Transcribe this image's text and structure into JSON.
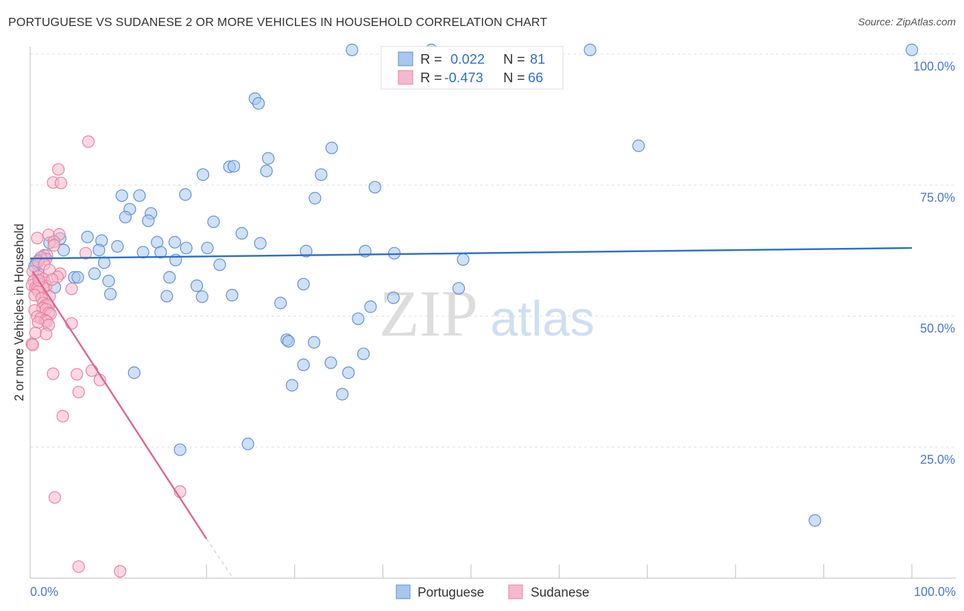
{
  "header": {
    "title": "PORTUGUESE VS SUDANESE 2 OR MORE VEHICLES IN HOUSEHOLD CORRELATION CHART",
    "source": "Source: ZipAtlas.com"
  },
  "watermark": {
    "zip": "ZIP",
    "atlas": "atlas"
  },
  "legend_box": {
    "rows": [
      {
        "r_label": "R =",
        "r_value": "0.022",
        "n_label": "N =",
        "n_value": "81"
      },
      {
        "r_label": "R =",
        "r_value": "-0.473",
        "n_label": "N =",
        "n_value": "66"
      }
    ]
  },
  "colors": {
    "portuguese_fill": "#a9c6ec",
    "portuguese_stroke": "#5a8fd6",
    "portuguese_line": "#2a6fc9",
    "sudanese_fill": "#f7b8cb",
    "sudanese_stroke": "#e77fa0",
    "sudanese_line": "#de6590",
    "value_text": "#2f6fd0",
    "grid": "#dddddd"
  },
  "chart_data": {
    "type": "scatter",
    "title": "PORTUGUESE VS SUDANESE 2 OR MORE VEHICLES IN HOUSEHOLD CORRELATION CHART",
    "xlabel": "",
    "ylabel": "2 or more Vehicles in Household",
    "xlim": [
      0,
      100
    ],
    "ylim": [
      0,
      100
    ],
    "x_tick_labels": [
      "0.0%",
      "100.0%"
    ],
    "y_tick_labels": [
      "100.0%",
      "75.0%",
      "50.0%",
      "25.0%"
    ],
    "y_ticks": [
      100,
      75,
      50,
      25
    ],
    "legend": [
      "Portuguese",
      "Sudanese"
    ],
    "series": [
      {
        "name": "Portuguese",
        "r": 0.022,
        "n": 81,
        "trend": {
          "x": [
            0,
            100
          ],
          "y": [
            61.0,
            63.0
          ]
        },
        "points": [
          [
            36.5,
            100.8
          ],
          [
            45.5,
            100.8
          ],
          [
            100,
            100.8
          ],
          [
            63.5,
            100.8
          ],
          [
            25.5,
            91.5
          ],
          [
            25.9,
            90.6
          ],
          [
            34.2,
            82.1
          ],
          [
            69.0,
            82.5
          ],
          [
            27.0,
            80.1
          ],
          [
            22.6,
            78.5
          ],
          [
            23.1,
            78.6
          ],
          [
            26.8,
            77.7
          ],
          [
            19.6,
            77.0
          ],
          [
            33.0,
            77.0
          ],
          [
            39.1,
            74.6
          ],
          [
            17.6,
            73.2
          ],
          [
            10.4,
            73.0
          ],
          [
            12.4,
            73.0
          ],
          [
            32.3,
            72.5
          ],
          [
            11.3,
            70.4
          ],
          [
            10.8,
            68.9
          ],
          [
            13.7,
            69.6
          ],
          [
            13.4,
            68.2
          ],
          [
            20.8,
            68.0
          ],
          [
            24.0,
            65.8
          ],
          [
            6.5,
            65.1
          ],
          [
            8.1,
            64.4
          ],
          [
            14.4,
            64.1
          ],
          [
            16.4,
            64.1
          ],
          [
            3.4,
            64.8
          ],
          [
            2.2,
            64.0
          ],
          [
            26.1,
            63.9
          ],
          [
            9.9,
            63.3
          ],
          [
            17.7,
            63.0
          ],
          [
            20.1,
            63.0
          ],
          [
            7.8,
            62.6
          ],
          [
            3.8,
            62.6
          ],
          [
            12.8,
            62.2
          ],
          [
            14.8,
            62.2
          ],
          [
            31.3,
            62.4
          ],
          [
            38.0,
            62.4
          ],
          [
            41.3,
            62.0
          ],
          [
            1.6,
            61.6
          ],
          [
            1.0,
            60.7
          ],
          [
            8.4,
            60.2
          ],
          [
            16.5,
            60.7
          ],
          [
            21.5,
            59.8
          ],
          [
            0.7,
            60.1
          ],
          [
            49.1,
            60.8
          ],
          [
            0.9,
            58.2
          ],
          [
            7.3,
            58.1
          ],
          [
            5.0,
            57.4
          ],
          [
            5.4,
            57.4
          ],
          [
            15.8,
            57.4
          ],
          [
            8.9,
            56.7
          ],
          [
            18.9,
            55.8
          ],
          [
            31.0,
            56.1
          ],
          [
            2.8,
            55.5
          ],
          [
            48.6,
            55.3
          ],
          [
            9.1,
            54.2
          ],
          [
            15.5,
            53.8
          ],
          [
            19.5,
            53.7
          ],
          [
            22.9,
            54.0
          ],
          [
            41.2,
            53.5
          ],
          [
            28.4,
            52.5
          ],
          [
            38.6,
            51.8
          ],
          [
            37.2,
            49.5
          ],
          [
            29.1,
            45.5
          ],
          [
            29.3,
            45.2
          ],
          [
            32.2,
            45.0
          ],
          [
            37.8,
            42.8
          ],
          [
            31.0,
            40.7
          ],
          [
            34.1,
            41.1
          ],
          [
            36.1,
            39.2
          ],
          [
            11.8,
            39.2
          ],
          [
            29.7,
            36.8
          ],
          [
            35.4,
            35.1
          ],
          [
            17.0,
            24.5
          ],
          [
            24.7,
            25.6
          ],
          [
            89.0,
            11.0
          ],
          [
            0.5,
            59.5
          ]
        ]
      },
      {
        "name": "Sudanese",
        "r": -0.473,
        "n": 66,
        "trend": {
          "x": [
            0.3,
            20.0
          ],
          "y": [
            58.5,
            7.5
          ]
        },
        "trend_dashed": {
          "x": [
            20.0,
            23.0
          ],
          "y": [
            7.5,
            0
          ]
        },
        "points": [
          [
            6.6,
            83.3
          ],
          [
            3.2,
            78.0
          ],
          [
            2.6,
            75.5
          ],
          [
            3.5,
            75.4
          ],
          [
            2.1,
            65.5
          ],
          [
            3.3,
            65.6
          ],
          [
            0.8,
            64.9
          ],
          [
            2.7,
            64.2
          ],
          [
            2.7,
            63.5
          ],
          [
            6.3,
            62.0
          ],
          [
            1.9,
            61.6
          ],
          [
            1.8,
            60.9
          ],
          [
            1.2,
            61.2
          ],
          [
            0.9,
            60.4
          ],
          [
            1.6,
            59.9
          ],
          [
            0.3,
            58.5
          ],
          [
            2.2,
            58.8
          ],
          [
            3.4,
            58.1
          ],
          [
            3.1,
            57.5
          ],
          [
            0.9,
            57.6
          ],
          [
            1.5,
            57.1
          ],
          [
            0.4,
            56.7
          ],
          [
            1.7,
            56.4
          ],
          [
            1.0,
            56.2
          ],
          [
            0.2,
            55.9
          ],
          [
            1.8,
            55.7
          ],
          [
            0.6,
            55.4
          ],
          [
            1.5,
            55.4
          ],
          [
            0.8,
            55.2
          ],
          [
            4.7,
            55.2
          ],
          [
            0.9,
            54.7
          ],
          [
            0.5,
            54.0
          ],
          [
            2.2,
            53.8
          ],
          [
            1.3,
            53.4
          ],
          [
            1.5,
            52.5
          ],
          [
            1.7,
            52.0
          ],
          [
            2.1,
            51.9
          ],
          [
            2.0,
            52.2
          ],
          [
            1.4,
            51.5
          ],
          [
            1.8,
            51.3
          ],
          [
            0.5,
            51.1
          ],
          [
            2.1,
            50.6
          ],
          [
            2.3,
            50.4
          ],
          [
            0.8,
            49.9
          ],
          [
            1.2,
            49.6
          ],
          [
            1.7,
            49.2
          ],
          [
            1.9,
            49.0
          ],
          [
            0.9,
            48.8
          ],
          [
            2.1,
            48.3
          ],
          [
            4.7,
            48.6
          ],
          [
            0.6,
            46.8
          ],
          [
            1.8,
            46.6
          ],
          [
            0.2,
            44.7
          ],
          [
            0.3,
            44.5
          ],
          [
            2.6,
            39.0
          ],
          [
            5.3,
            38.9
          ],
          [
            7.0,
            39.6
          ],
          [
            7.9,
            37.8
          ],
          [
            5.5,
            35.5
          ],
          [
            3.7,
            30.9
          ],
          [
            17.0,
            16.5
          ],
          [
            2.8,
            15.4
          ],
          [
            5.5,
            2.2
          ],
          [
            10.2,
            1.3
          ],
          [
            1.0,
            56.8
          ],
          [
            2.5,
            57.0
          ]
        ]
      }
    ]
  }
}
